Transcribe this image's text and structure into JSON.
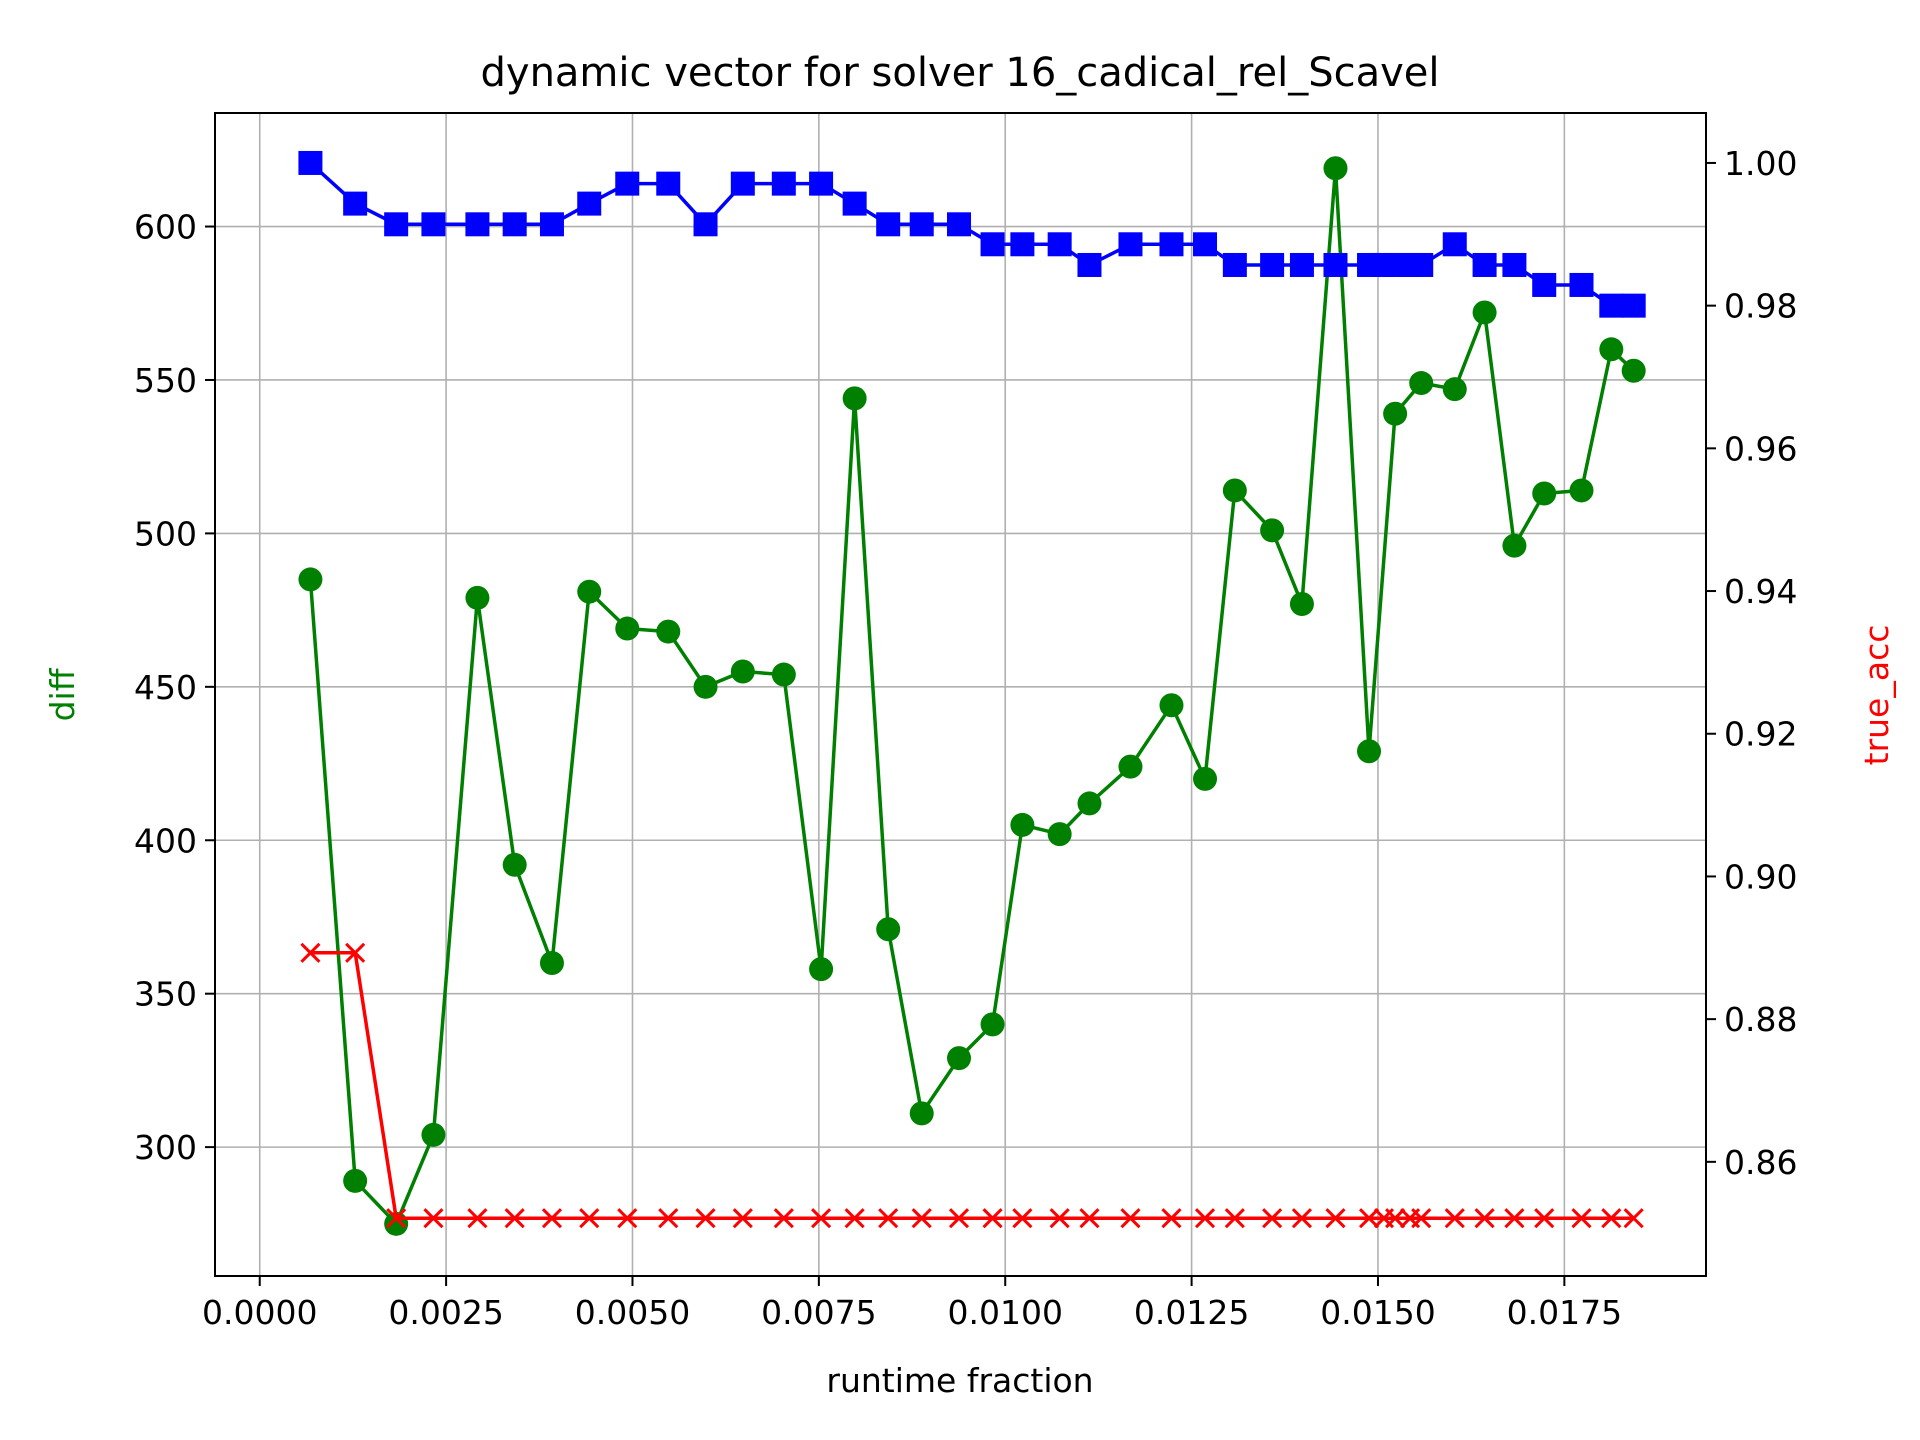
{
  "chart_data": {
    "type": "line",
    "title": "dynamic vector for solver 16_cadical_rel_Scavel",
    "xlabel": "runtime fraction",
    "ylabel_left": "diff",
    "ylabel_right": "true_acc",
    "xlim": [
      -0.0006,
      0.0194
    ],
    "ylim_left": [
      258,
      637
    ],
    "ylim_right": [
      0.844,
      1.007
    ],
    "xticks": [
      "0.0000",
      "0.0025",
      "0.0050",
      "0.0075",
      "0.0100",
      "0.0125",
      "0.0150",
      "0.0175"
    ],
    "yticks_left": [
      "300",
      "350",
      "400",
      "450",
      "500",
      "550",
      "600"
    ],
    "yticks_right": [
      "0.86",
      "0.88",
      "0.90",
      "0.92",
      "0.94",
      "0.96",
      "0.98",
      "1.00"
    ],
    "grid": true,
    "colors": {
      "diff": "#008000",
      "true_acc": "#ff0000",
      "blue": "#0000ff"
    },
    "series": [
      {
        "color": "#008000",
        "marker": "circle",
        "axis": "left",
        "x": [
          0.00068,
          0.00128,
          0.00183,
          0.00233,
          0.00292,
          0.00342,
          0.00392,
          0.00442,
          0.00493,
          0.00548,
          0.00598,
          0.00648,
          0.00703,
          0.00753,
          0.00798,
          0.00843,
          0.00888,
          0.00938,
          0.00983,
          0.01023,
          0.01073,
          0.01113,
          0.01168,
          0.01223,
          0.01268,
          0.01308,
          0.01358,
          0.01398,
          0.01443,
          0.01488,
          0.01523,
          0.01558,
          0.01603,
          0.01643,
          0.01683,
          0.01723,
          0.01773,
          0.01813,
          0.01843
        ],
        "values": [
          485,
          289,
          275,
          304,
          479,
          392,
          360,
          481,
          469,
          468,
          450,
          455,
          454,
          358,
          544,
          371,
          311,
          329,
          340,
          405,
          402,
          412,
          424,
          444,
          420,
          514,
          501,
          477,
          619,
          429,
          539,
          549,
          547,
          572,
          496,
          513,
          514,
          560,
          553
        ]
      },
      {
        "color": "#0000ff",
        "marker": "square",
        "axis": "right",
        "x": [
          0.00068,
          0.00128,
          0.00183,
          0.00233,
          0.00292,
          0.00342,
          0.00392,
          0.00442,
          0.00493,
          0.00548,
          0.00598,
          0.00648,
          0.00703,
          0.00753,
          0.00798,
          0.00843,
          0.00888,
          0.00938,
          0.00983,
          0.01023,
          0.01073,
          0.01113,
          0.01168,
          0.01223,
          0.01268,
          0.01308,
          0.01358,
          0.01398,
          0.01443,
          0.01488,
          0.01508,
          0.01523,
          0.01543,
          0.01558,
          0.01603,
          0.01643,
          0.01683,
          0.01723,
          0.01773,
          0.01813,
          0.01843
        ],
        "values": [
          1.0,
          0.9943,
          0.9914,
          0.9914,
          0.9914,
          0.9914,
          0.9914,
          0.9943,
          0.9971,
          0.9971,
          0.9914,
          0.9971,
          0.9971,
          0.9971,
          0.9943,
          0.9914,
          0.9914,
          0.9914,
          0.9886,
          0.9886,
          0.9886,
          0.9857,
          0.9886,
          0.9886,
          0.9886,
          0.9857,
          0.9857,
          0.9857,
          0.9857,
          0.9857,
          0.9857,
          0.9857,
          0.9857,
          0.9857,
          0.9886,
          0.9857,
          0.9857,
          0.9829,
          0.9829,
          0.98,
          0.98
        ]
      },
      {
        "color": "#ff0000",
        "marker": "x",
        "axis": "right",
        "x": [
          0.00068,
          0.00128,
          0.00183,
          0.00233,
          0.00292,
          0.00342,
          0.00392,
          0.00442,
          0.00493,
          0.00548,
          0.00598,
          0.00648,
          0.00703,
          0.00753,
          0.00798,
          0.00843,
          0.00888,
          0.00938,
          0.00983,
          0.01023,
          0.01073,
          0.01113,
          0.01168,
          0.01223,
          0.01268,
          0.01308,
          0.01358,
          0.01398,
          0.01443,
          0.01488,
          0.01508,
          0.01523,
          0.01543,
          0.01558,
          0.01603,
          0.01643,
          0.01683,
          0.01723,
          0.01773,
          0.01813,
          0.01843
        ],
        "values": [
          0.8893,
          0.8893,
          0.8521,
          0.8521,
          0.8521,
          0.8521,
          0.8521,
          0.8521,
          0.8521,
          0.8521,
          0.8521,
          0.8521,
          0.8521,
          0.8521,
          0.8521,
          0.8521,
          0.8521,
          0.8521,
          0.8521,
          0.8521,
          0.8521,
          0.8521,
          0.8521,
          0.8521,
          0.8521,
          0.8521,
          0.8521,
          0.8521,
          0.8521,
          0.8521,
          0.8521,
          0.8521,
          0.8521,
          0.8521,
          0.8521,
          0.8521,
          0.8521,
          0.8521,
          0.8521,
          0.8521,
          0.8521
        ]
      }
    ]
  }
}
